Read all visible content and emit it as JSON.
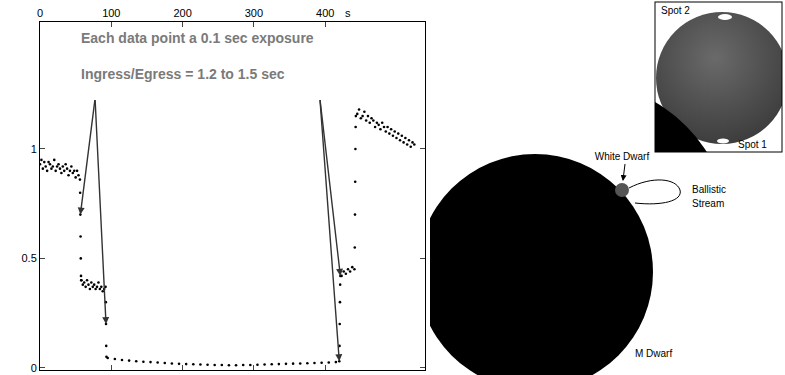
{
  "chart_data": {
    "type": "scatter",
    "marker": "dot",
    "color": "#000000",
    "x": [
      0,
      2,
      4,
      6,
      8,
      10,
      12,
      14,
      16,
      18,
      20,
      22,
      24,
      26,
      28,
      30,
      32,
      34,
      36,
      38,
      40,
      42,
      44,
      46,
      48,
      50,
      52,
      54,
      56,
      56.3,
      56.6,
      56.9,
      57.2,
      57.5,
      57.8,
      58,
      60,
      62,
      64,
      66,
      68,
      70,
      72,
      74,
      76,
      78,
      80,
      82,
      84,
      86,
      88,
      90,
      92,
      92.3,
      92.6,
      92.9,
      93.2,
      95,
      105,
      115,
      125,
      135,
      145,
      155,
      165,
      175,
      185,
      195,
      205,
      215,
      225,
      235,
      245,
      255,
      265,
      275,
      285,
      295,
      305,
      315,
      325,
      335,
      345,
      355,
      365,
      375,
      385,
      395,
      405,
      415,
      419.8,
      420.1,
      420.4,
      420.7,
      421,
      421.3,
      423,
      426,
      429,
      432,
      435,
      438,
      441,
      441.5,
      441.8,
      442.1,
      442.4,
      442.7,
      443,
      445,
      447.5,
      450,
      452.5,
      455,
      457.5,
      460,
      462.5,
      465,
      467.5,
      470,
      472.5,
      475,
      477.5,
      480,
      482.5,
      485,
      487.5,
      490,
      492.5,
      495,
      497.5,
      500,
      502.5,
      505,
      507.5,
      510,
      512.5,
      515,
      517.5,
      520,
      522.5,
      525
    ],
    "values": [
      0.93,
      0.95,
      0.91,
      0.94,
      0.92,
      0.9,
      0.94,
      0.93,
      0.91,
      0.92,
      0.95,
      0.9,
      0.92,
      0.93,
      0.91,
      0.89,
      0.92,
      0.9,
      0.93,
      0.91,
      0.88,
      0.9,
      0.92,
      0.89,
      0.9,
      0.87,
      0.9,
      0.88,
      0.86,
      0.8,
      0.7,
      0.6,
      0.5,
      0.42,
      0.4,
      0.4,
      0.38,
      0.39,
      0.37,
      0.4,
      0.38,
      0.36,
      0.39,
      0.37,
      0.38,
      0.36,
      0.37,
      0.39,
      0.36,
      0.37,
      0.35,
      0.36,
      0.37,
      0.3,
      0.2,
      0.1,
      0.05,
      0.045,
      0.04,
      0.036,
      0.033,
      0.03,
      0.028,
      0.026,
      0.024,
      0.022,
      0.02,
      0.018,
      0.017,
      0.016,
      0.015,
      0.014,
      0.013,
      0.013,
      0.012,
      0.012,
      0.013,
      0.013,
      0.014,
      0.015,
      0.016,
      0.017,
      0.018,
      0.019,
      0.02,
      0.021,
      0.022,
      0.023,
      0.024,
      0.026,
      0.03,
      0.1,
      0.2,
      0.3,
      0.38,
      0.42,
      0.42,
      0.44,
      0.43,
      0.45,
      0.44,
      0.46,
      0.45,
      0.55,
      0.7,
      0.85,
      1.0,
      1.1,
      1.15,
      1.16,
      1.18,
      1.14,
      1.15,
      1.17,
      1.13,
      1.15,
      1.12,
      1.14,
      1.13,
      1.1,
      1.12,
      1.11,
      1.09,
      1.12,
      1.1,
      1.08,
      1.1,
      1.07,
      1.09,
      1.06,
      1.08,
      1.05,
      1.07,
      1.04,
      1.06,
      1.03,
      1.05,
      1.02,
      1.04,
      1.01,
      1.03,
      1.02
    ],
    "xlim": [
      0,
      540
    ],
    "ylim": [
      -0.01,
      1.58
    ],
    "xticks": [
      0,
      100,
      200,
      300,
      400
    ],
    "yticks": [
      0,
      0.5,
      1
    ],
    "xlabel": "s",
    "annotations": [
      {
        "text": "Each data point a 0.1 sec exposure"
      },
      {
        "text": "Ingress/Egress = 1.2 to 1.5 sec",
        "arrows_to": [
          [
            56.6,
            0.7
          ],
          [
            92.6,
            0.2
          ],
          [
            419.8,
            0.03
          ],
          [
            421.3,
            0.42
          ]
        ]
      }
    ]
  },
  "diagram": {
    "white_dwarf": "White Dwarf",
    "ballistic_stream": "Ballistic Stream",
    "m_dwarf": "M Dwarf",
    "inset": {
      "spot_2": "Spot 2",
      "spot_1": "Spot 1"
    }
  }
}
